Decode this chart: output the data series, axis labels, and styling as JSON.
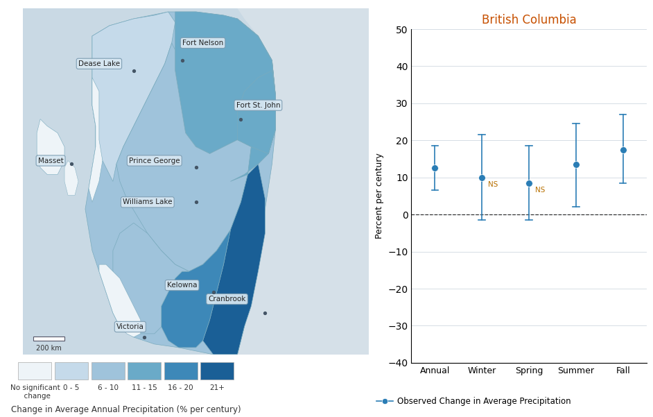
{
  "chart_title": "British Columbia",
  "chart_ylabel": "Percent per century",
  "chart_xlabel_categories": [
    "Annual",
    "Winter",
    "Spring",
    "Summer",
    "Fall"
  ],
  "chart_values": [
    12.5,
    10.0,
    8.5,
    13.5,
    17.5
  ],
  "chart_error_low": [
    6.5,
    -1.5,
    -1.5,
    2.0,
    8.5
  ],
  "chart_error_high": [
    18.5,
    21.5,
    18.5,
    24.5,
    27.0
  ],
  "chart_ns": [
    false,
    true,
    true,
    false,
    false
  ],
  "chart_ylim": [
    -40,
    50
  ],
  "chart_yticks": [
    -40,
    -30,
    -20,
    -10,
    0,
    10,
    20,
    30,
    40,
    50
  ],
  "chart_color": "#2a7db5",
  "legend_label": "Observed Change in Average Precipitation",
  "colorbar_labels": [
    "No significant\n  change",
    "0 - 5",
    "6 - 10",
    "11 - 15",
    "16 - 20",
    "21+"
  ],
  "colorbar_title": "Change in Average Annual Precipitation (% per century)",
  "fig_bg": "#ffffff",
  "scale_label": "200 km",
  "c_nosig": "#eef4f8",
  "c_0_5": "#c5daea",
  "c_6_10": "#9fc3db",
  "c_11_15": "#6aaac8",
  "c_16_20": "#3d88b8",
  "c_21plus": "#1a5f96",
  "c_ocean": "#c9d9e4",
  "c_land_bg": "#d5e0e8",
  "c_border": "#7aabbe",
  "chart_title_color": "#c75000"
}
